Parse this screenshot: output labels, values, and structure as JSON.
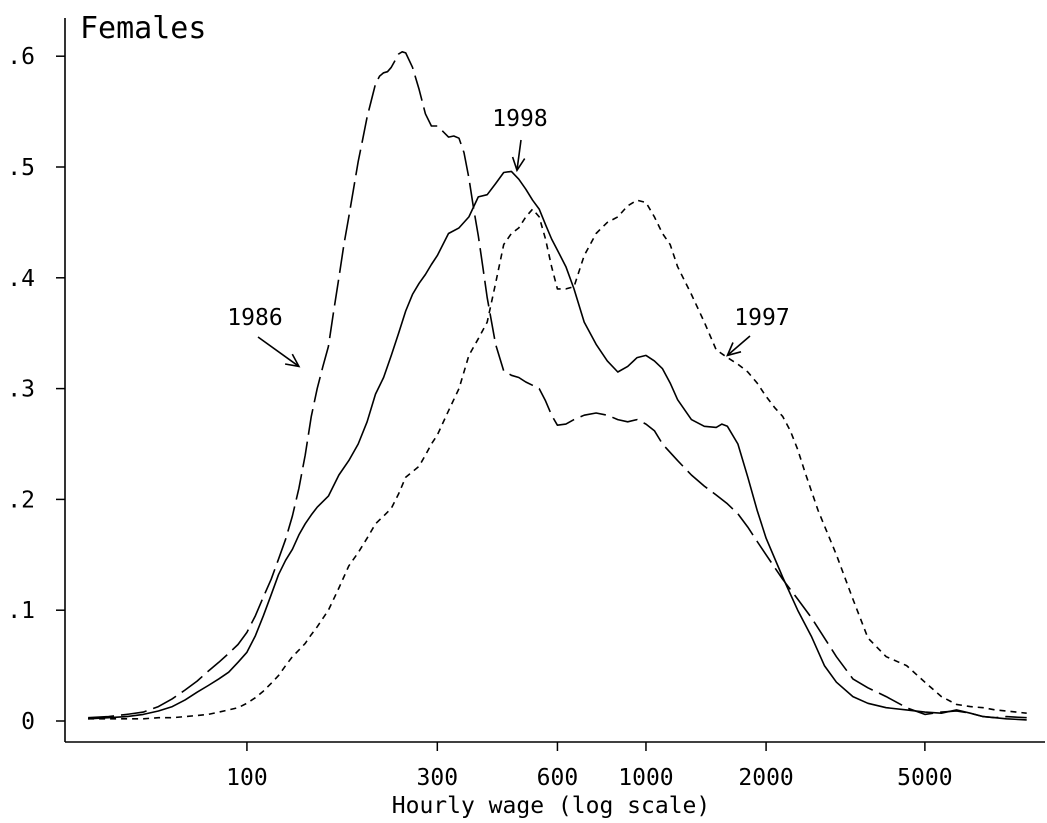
{
  "chart_data": {
    "type": "line",
    "title": "Females",
    "xlabel": "Hourly wage (log scale)",
    "ylabel": "",
    "x_scale": "log",
    "xlim": [
      35,
      10000
    ],
    "ylim": [
      0,
      0.63
    ],
    "x_ticks": [
      {
        "value": 100,
        "label": "100"
      },
      {
        "value": 300,
        "label": "300"
      },
      {
        "value": 600,
        "label": "600"
      },
      {
        "value": 1000,
        "label": "1000"
      },
      {
        "value": 2000,
        "label": "2000"
      },
      {
        "value": 5000,
        "label": "5000"
      }
    ],
    "y_ticks": [
      {
        "value": 0,
        "label": "0"
      },
      {
        "value": 0.1,
        "label": ".1"
      },
      {
        "value": 0.2,
        "label": ".2"
      },
      {
        "value": 0.3,
        "label": ".3"
      },
      {
        "value": 0.4,
        "label": ".4"
      },
      {
        "value": 0.5,
        "label": ".5"
      },
      {
        "value": 0.6,
        "label": ".6"
      }
    ],
    "grid": false,
    "legend": "none",
    "series": [
      {
        "name": "1986",
        "dash": "long-dash",
        "x": [
          40,
          45,
          50,
          55,
          60,
          65,
          70,
          75,
          80,
          85,
          90,
          95,
          100,
          105,
          110,
          115,
          120,
          125,
          130,
          135,
          140,
          145,
          150,
          155,
          160,
          165,
          170,
          175,
          180,
          185,
          190,
          195,
          200,
          205,
          210,
          215,
          220,
          225,
          230,
          235,
          240,
          245,
          250,
          260,
          270,
          280,
          290,
          300,
          310,
          320,
          330,
          340,
          350,
          360,
          370,
          380,
          390,
          400,
          420,
          440,
          460,
          480,
          500,
          520,
          540,
          560,
          580,
          600,
          630,
          660,
          700,
          750,
          800,
          850,
          900,
          950,
          1000,
          1050,
          1100,
          1200,
          1300,
          1400,
          1500,
          1600,
          1700,
          1800,
          1900,
          2000,
          2200,
          2400,
          2600,
          2800,
          3000,
          3300,
          3600,
          4000,
          4500,
          5000,
          5500,
          6000,
          6500,
          7000,
          7500,
          8000,
          9000
        ],
        "values": [
          0.003,
          0.004,
          0.006,
          0.008,
          0.013,
          0.02,
          0.028,
          0.036,
          0.045,
          0.053,
          0.061,
          0.069,
          0.08,
          0.095,
          0.112,
          0.128,
          0.146,
          0.164,
          0.185,
          0.21,
          0.24,
          0.275,
          0.3,
          0.32,
          0.338,
          0.37,
          0.4,
          0.43,
          0.455,
          0.48,
          0.505,
          0.525,
          0.545,
          0.56,
          0.575,
          0.582,
          0.585,
          0.586,
          0.59,
          0.596,
          0.602,
          0.604,
          0.603,
          0.59,
          0.57,
          0.548,
          0.537,
          0.537,
          0.532,
          0.527,
          0.528,
          0.526,
          0.513,
          0.49,
          0.462,
          0.438,
          0.41,
          0.382,
          0.34,
          0.316,
          0.312,
          0.31,
          0.306,
          0.303,
          0.3,
          0.289,
          0.276,
          0.267,
          0.268,
          0.272,
          0.276,
          0.278,
          0.276,
          0.272,
          0.27,
          0.272,
          0.268,
          0.262,
          0.25,
          0.235,
          0.222,
          0.212,
          0.204,
          0.196,
          0.187,
          0.175,
          0.162,
          0.15,
          0.128,
          0.11,
          0.093,
          0.075,
          0.058,
          0.038,
          0.03,
          0.022,
          0.012,
          0.006,
          0.008,
          0.009,
          0.007,
          0.004,
          0.003,
          0.004,
          0.003
        ]
      },
      {
        "name": "1997",
        "dash": "short-dash",
        "x": [
          40,
          45,
          50,
          55,
          60,
          65,
          70,
          75,
          80,
          85,
          90,
          95,
          100,
          105,
          110,
          115,
          120,
          125,
          130,
          135,
          140,
          145,
          150,
          160,
          170,
          180,
          190,
          200,
          210,
          220,
          230,
          240,
          250,
          260,
          270,
          280,
          290,
          300,
          320,
          340,
          360,
          380,
          400,
          420,
          440,
          460,
          480,
          500,
          520,
          540,
          560,
          580,
          600,
          630,
          660,
          700,
          750,
          800,
          850,
          900,
          950,
          1000,
          1050,
          1100,
          1150,
          1200,
          1300,
          1400,
          1500,
          1600,
          1700,
          1800,
          1900,
          2000,
          2100,
          2200,
          2300,
          2400,
          2500,
          2700,
          3000,
          3300,
          3600,
          4000,
          4500,
          5000,
          5500,
          6000,
          6500,
          7000,
          7500,
          8000,
          9000
        ],
        "values": [
          0.002,
          0.002,
          0.002,
          0.002,
          0.003,
          0.003,
          0.004,
          0.005,
          0.006,
          0.008,
          0.01,
          0.012,
          0.016,
          0.021,
          0.027,
          0.034,
          0.041,
          0.05,
          0.058,
          0.064,
          0.07,
          0.078,
          0.085,
          0.1,
          0.12,
          0.14,
          0.152,
          0.165,
          0.178,
          0.185,
          0.192,
          0.205,
          0.22,
          0.225,
          0.23,
          0.24,
          0.25,
          0.258,
          0.28,
          0.3,
          0.33,
          0.345,
          0.36,
          0.395,
          0.43,
          0.44,
          0.445,
          0.455,
          0.462,
          0.455,
          0.435,
          0.41,
          0.39,
          0.39,
          0.392,
          0.42,
          0.44,
          0.45,
          0.455,
          0.465,
          0.47,
          0.468,
          0.455,
          0.44,
          0.43,
          0.41,
          0.385,
          0.36,
          0.335,
          0.328,
          0.322,
          0.315,
          0.305,
          0.293,
          0.283,
          0.275,
          0.262,
          0.245,
          0.225,
          0.19,
          0.15,
          0.11,
          0.075,
          0.058,
          0.05,
          0.035,
          0.022,
          0.015,
          0.013,
          0.012,
          0.01,
          0.009,
          0.007
        ]
      },
      {
        "name": "1998",
        "dash": "solid",
        "x": [
          40,
          45,
          50,
          55,
          60,
          65,
          70,
          75,
          80,
          85,
          90,
          95,
          100,
          105,
          110,
          115,
          120,
          125,
          130,
          135,
          140,
          145,
          150,
          160,
          170,
          180,
          190,
          200,
          210,
          220,
          230,
          240,
          250,
          260,
          270,
          280,
          290,
          300,
          320,
          340,
          360,
          380,
          400,
          420,
          440,
          460,
          480,
          500,
          520,
          540,
          560,
          580,
          600,
          630,
          660,
          700,
          750,
          800,
          850,
          900,
          950,
          1000,
          1050,
          1100,
          1150,
          1200,
          1300,
          1400,
          1500,
          1550,
          1600,
          1700,
          1800,
          1900,
          2000,
          2200,
          2400,
          2600,
          2800,
          3000,
          3300,
          3600,
          4000,
          4500,
          5000,
          5500,
          6000,
          6500,
          7000,
          8000,
          9000
        ],
        "values": [
          0.002,
          0.003,
          0.004,
          0.006,
          0.009,
          0.013,
          0.019,
          0.026,
          0.032,
          0.038,
          0.044,
          0.053,
          0.062,
          0.077,
          0.095,
          0.114,
          0.132,
          0.145,
          0.155,
          0.168,
          0.178,
          0.186,
          0.193,
          0.203,
          0.222,
          0.235,
          0.25,
          0.27,
          0.295,
          0.31,
          0.33,
          0.35,
          0.37,
          0.385,
          0.395,
          0.403,
          0.412,
          0.42,
          0.44,
          0.445,
          0.455,
          0.473,
          0.475,
          0.485,
          0.495,
          0.496,
          0.489,
          0.48,
          0.47,
          0.462,
          0.448,
          0.435,
          0.425,
          0.41,
          0.39,
          0.36,
          0.34,
          0.325,
          0.315,
          0.32,
          0.328,
          0.33,
          0.325,
          0.318,
          0.305,
          0.29,
          0.272,
          0.266,
          0.265,
          0.268,
          0.266,
          0.25,
          0.22,
          0.19,
          0.165,
          0.13,
          0.1,
          0.076,
          0.05,
          0.035,
          0.022,
          0.016,
          0.012,
          0.01,
          0.008,
          0.007,
          0.01,
          0.007,
          0.004,
          0.002,
          0.001
        ]
      }
    ],
    "annotations": [
      {
        "text": "1986",
        "series": "1986",
        "point_x": 135,
        "point_y": 0.32
      },
      {
        "text": "1998",
        "series": "1998",
        "point_x": 475,
        "point_y": 0.497
      },
      {
        "text": "1997",
        "series": "1997",
        "point_x": 1600,
        "point_y": 0.33
      }
    ]
  }
}
